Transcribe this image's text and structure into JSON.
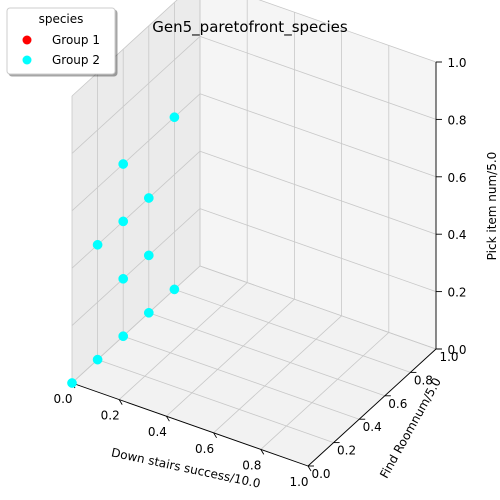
{
  "chart_data": {
    "type": "scatter",
    "title": "Gen5_paretofront_species",
    "xlabel": "Down stairs success/10.0",
    "ylabel": "Find Roomnum/5.0",
    "zlabel": "Pick item num/5.0",
    "xlim": [
      0.0,
      1.0
    ],
    "ylim": [
      0.0,
      1.0
    ],
    "zlim": [
      0.0,
      1.0
    ],
    "x_ticks": [
      "0.0",
      "0.2",
      "0.4",
      "0.6",
      "0.8",
      "1.0"
    ],
    "y_ticks": [
      "0.0",
      "0.2",
      "0.4",
      "0.6",
      "0.8",
      "1.0"
    ],
    "z_ticks": [
      "0.0",
      "0.2",
      "0.4",
      "0.6",
      "0.8",
      "1.0"
    ],
    "grid": true,
    "legend": {
      "title": "species",
      "placement": "top-left",
      "entries": [
        {
          "name": "Group 1",
          "color": "#ff0000"
        },
        {
          "name": "Group 2",
          "color": "#00ffff"
        }
      ]
    },
    "series": [
      {
        "name": "Group 1",
        "color": "#ff0000",
        "points": []
      },
      {
        "name": "Group 2",
        "color": "#00ffff",
        "points": [
          {
            "x": 0.0,
            "y": 0.0,
            "z": 0.0
          },
          {
            "x": 0.0,
            "y": 0.2,
            "z": 0.0
          },
          {
            "x": 0.0,
            "y": 0.4,
            "z": 0.0
          },
          {
            "x": 0.0,
            "y": 0.6,
            "z": 0.0
          },
          {
            "x": 0.0,
            "y": 0.8,
            "z": 0.0
          },
          {
            "x": 0.0,
            "y": 0.4,
            "z": 0.2
          },
          {
            "x": 0.0,
            "y": 0.6,
            "z": 0.2
          },
          {
            "x": 0.0,
            "y": 0.2,
            "z": 0.4
          },
          {
            "x": 0.0,
            "y": 0.4,
            "z": 0.4
          },
          {
            "x": 0.0,
            "y": 0.6,
            "z": 0.4
          },
          {
            "x": 0.0,
            "y": 0.4,
            "z": 0.6
          },
          {
            "x": 0.0,
            "y": 0.8,
            "z": 0.6
          }
        ]
      }
    ]
  }
}
